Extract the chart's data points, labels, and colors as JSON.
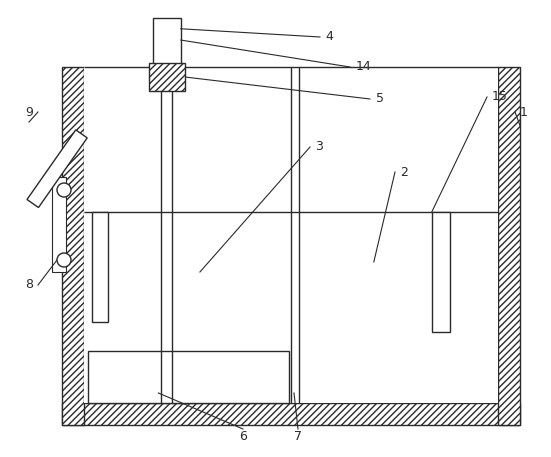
{
  "bg_color": "#ffffff",
  "line_color": "#2a2a2a",
  "figsize": [
    5.51,
    4.57
  ],
  "dpi": 100,
  "lw": 1.0
}
